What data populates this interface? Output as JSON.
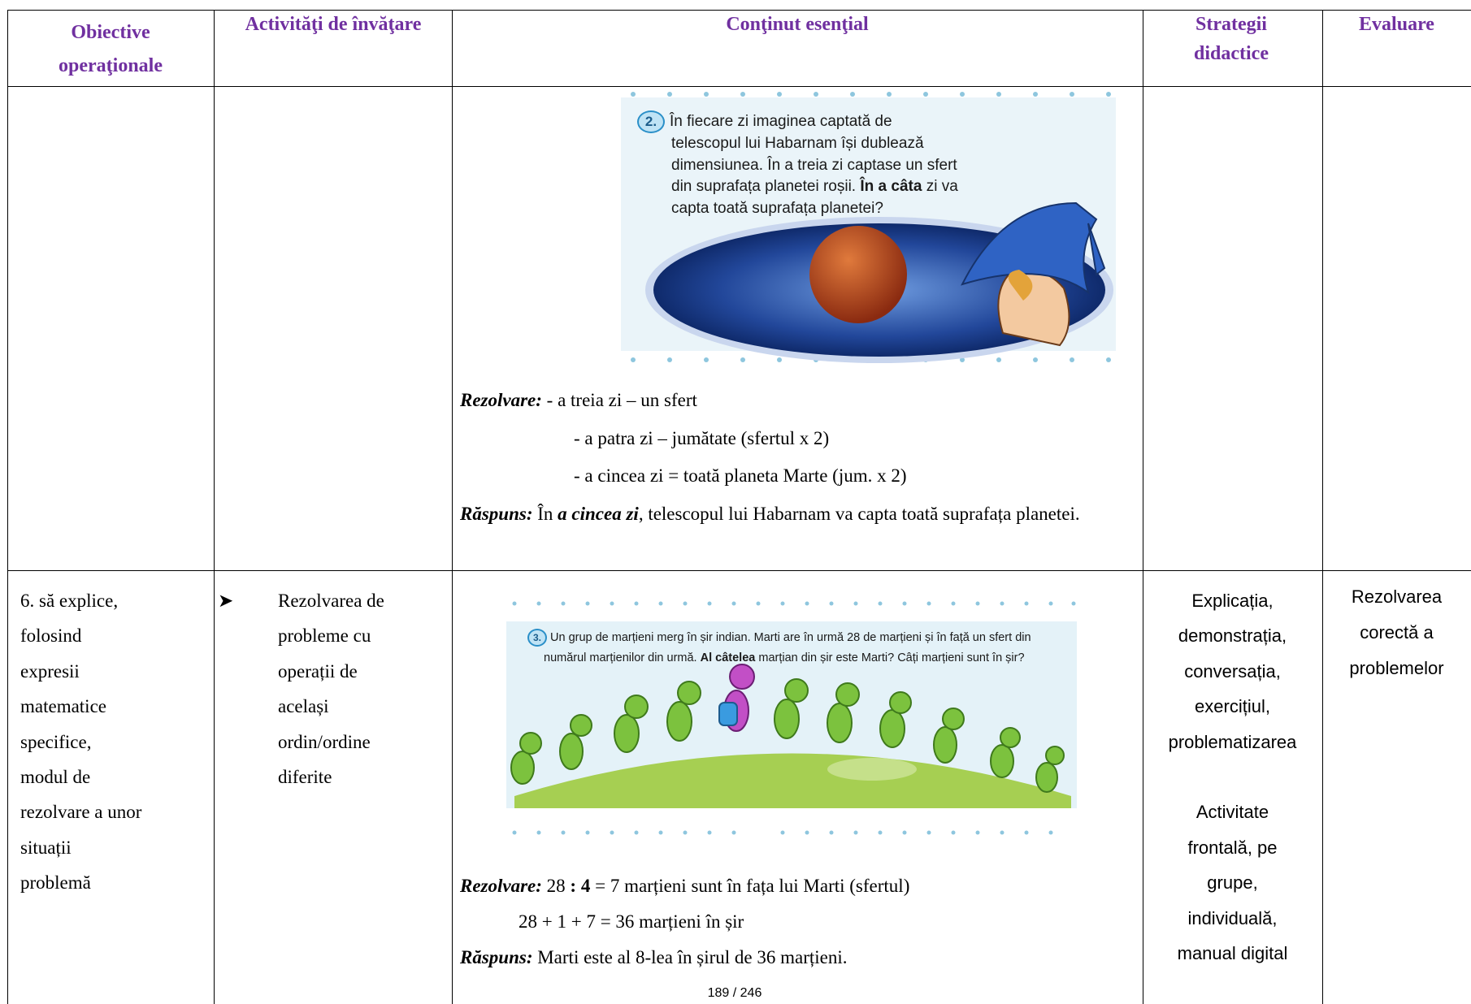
{
  "table": {
    "headers": [
      "Obiective operaţionale",
      "Activităţi de învăţare",
      "Conţinut esenţial",
      "Strategii didactice",
      "Evaluare"
    ],
    "rows": [
      {
        "content": {
          "problem_number": "2.",
          "problem_segments": [
            "În fiecare zi imaginea captată de",
            "telescopul lui Habarnam își dublează",
            "dimensiunea. În a treia zi captase un sfert",
            "din suprafața planetei roșii.",
            "În a câta",
            "zi va",
            "capta toată suprafața planetei?"
          ],
          "solution_label": "Rezolvare:",
          "solution_lines": [
            "- a treia zi – un sfert",
            "- a patra zi – jumătate (sfertul x 2)",
            "- a cincea zi = toată planeta Marte (jum. x 2)"
          ],
          "answer_label": "Răspuns:",
          "answer_parts": [
            "În",
            "a cincea zi",
            ", telescopul lui Habarnam va capta toată suprafața planetei."
          ]
        }
      },
      {
        "objective_lines": [
          "6. să explice,",
          "folosind",
          "expresii",
          "matematice",
          "specifice,",
          "modul de",
          "rezolvare a unor",
          "situații",
          "problemă"
        ],
        "activity_lines": [
          "Rezolvarea de",
          "probleme cu",
          "operații de",
          "același",
          "ordin/ordine",
          "diferite"
        ],
        "content": {
          "problem_number": "3.",
          "problem_segments": [
            "Un grup de marțieni merg în șir indian. Marti are în urmă 28 de marțieni și în față un sfert din",
            "numărul marțienilor din urmă.",
            "Al câtelea",
            "marțian din șir este Marti? Câți marțieni sunt în șir?"
          ],
          "solution_label": "Rezolvare:",
          "solution_parts": [
            "28",
            ": 4",
            "= 7 marțieni sunt în fața lui Marti (sfertul)"
          ],
          "solution_line_2": "28 + 1 + 7 = 36 marțieni în șir",
          "answer_label": "Răspuns:",
          "answer": "Marti este al 8-lea în șirul de 36 marțieni."
        },
        "strategies": [
          [
            "Explicația,",
            "demonstrația,",
            "conversația,",
            "exercițiul,",
            "problematizarea"
          ],
          [
            "Activitate",
            "frontală, pe",
            "grupe,",
            "individuală,",
            "manual digital"
          ]
        ],
        "evaluation_lines": [
          "Rezolvarea",
          "corectă a",
          "problemelor"
        ]
      }
    ]
  },
  "page_number": "189 / 246"
}
